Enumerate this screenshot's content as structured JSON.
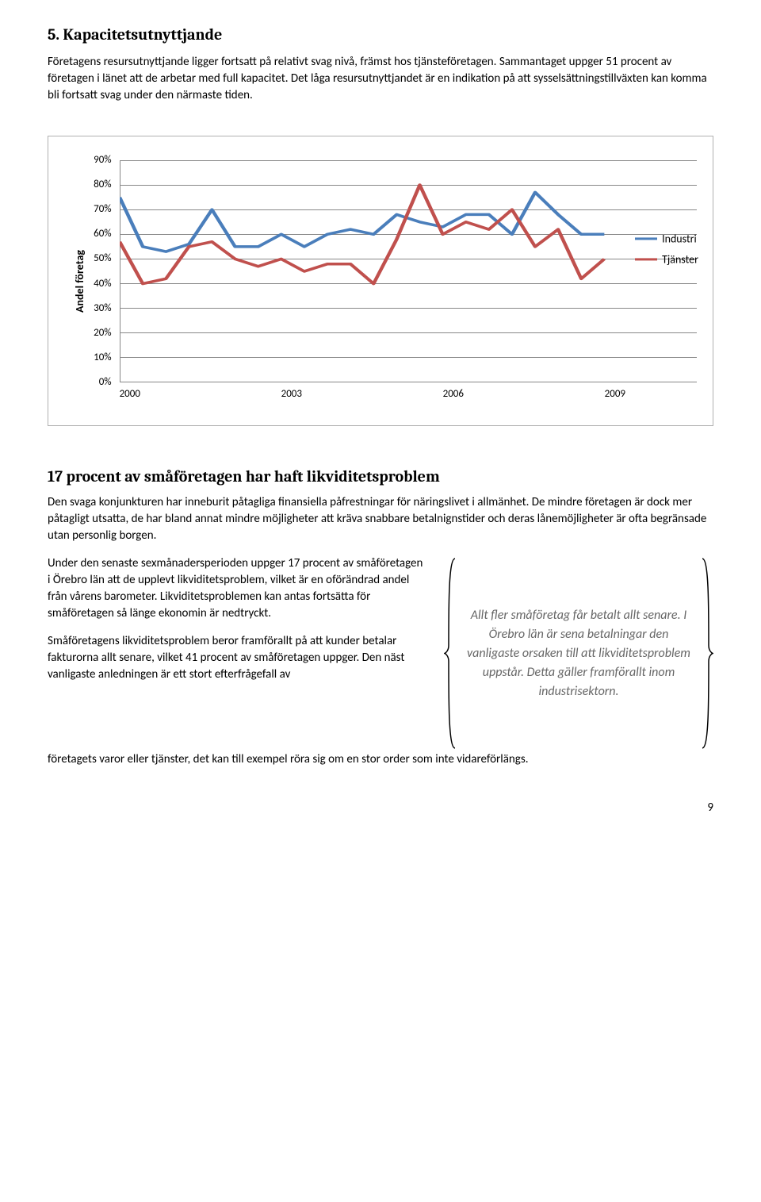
{
  "section": {
    "title": "5. Kapacitetsutnyttjande",
    "para1": "Företagens resursutnyttjande ligger fortsatt på relativt svag nivå, främst hos tjänsteföretagen. Sammantaget uppger 51 procent av företagen i länet att de arbetar med full kapacitet. Det låga resursutnyttjandet är en indikation på att sysselsättningstillväxten kan komma bli fortsatt svag under den närmaste tiden."
  },
  "chart": {
    "y_label": "Andel företag",
    "y_ticks": [
      "0%",
      "10%",
      "20%",
      "30%",
      "40%",
      "50%",
      "60%",
      "70%",
      "80%",
      "90%"
    ],
    "y_min": 0,
    "y_max": 90,
    "x_ticks": [
      "2000",
      "2003",
      "2006",
      "2009"
    ],
    "legend": [
      {
        "label": "Industri",
        "color": "#4a7ebb"
      },
      {
        "label": "Tjänster",
        "color": "#c0504d"
      }
    ],
    "series": {
      "industri": {
        "color": "#4a7ebb",
        "width": 3.5,
        "values": [
          75,
          55,
          53,
          56,
          70,
          55,
          55,
          60,
          55,
          60,
          62,
          60,
          68,
          65,
          63,
          68,
          68,
          60,
          77,
          68,
          60,
          60
        ]
      },
      "tjanster": {
        "color": "#c0504d",
        "width": 3.5,
        "values": [
          57,
          40,
          42,
          55,
          57,
          50,
          47,
          50,
          45,
          48,
          48,
          40,
          58,
          80,
          60,
          65,
          62,
          70,
          55,
          62,
          42,
          50
        ]
      }
    },
    "grid_color": "#888888",
    "background_color": "#ffffff"
  },
  "subsection": {
    "title": "17 procent av småföretagen har haft likviditetsproblem",
    "para1": "Den svaga konjunkturen har inneburit påtagliga finansiella påfrestningar för näringslivet i allmänhet. De mindre företagen är dock mer påtagligt utsatta, de har bland annat mindre möjligheter att kräva snabbare betalnignstider och deras lånemöjligheter är ofta begränsade utan personlig borgen.",
    "para_left_1": "Under den senaste sexmånadersperioden uppger 17 procent av småföretagen i Örebro län att de upplevt likviditetsproblem, vilket är en oförändrad andel från vårens barometer. Likviditetsproblemen kan antas fortsätta för småföretagen så länge ekonomin är nedtryckt.",
    "para_left_2": "Småföretagens likviditetsproblem beror framförallt på att kunder betalar fakturorna allt senare, vilket 41 procent av småföretagen uppger. Den näst vanligaste anledningen är ett stort efterfrågefall av",
    "quote": "Allt fler småföretag får betalt allt senare. I Örebro län är sena betalningar den vanligaste orsaken till att likviditetsproblem uppstår. Detta gäller framförallt inom industrisektorn.",
    "para_bottom": "företagets varor eller tjänster, det kan till exempel röra sig om en stor order som inte vidareförlängs."
  },
  "page_number": "9"
}
